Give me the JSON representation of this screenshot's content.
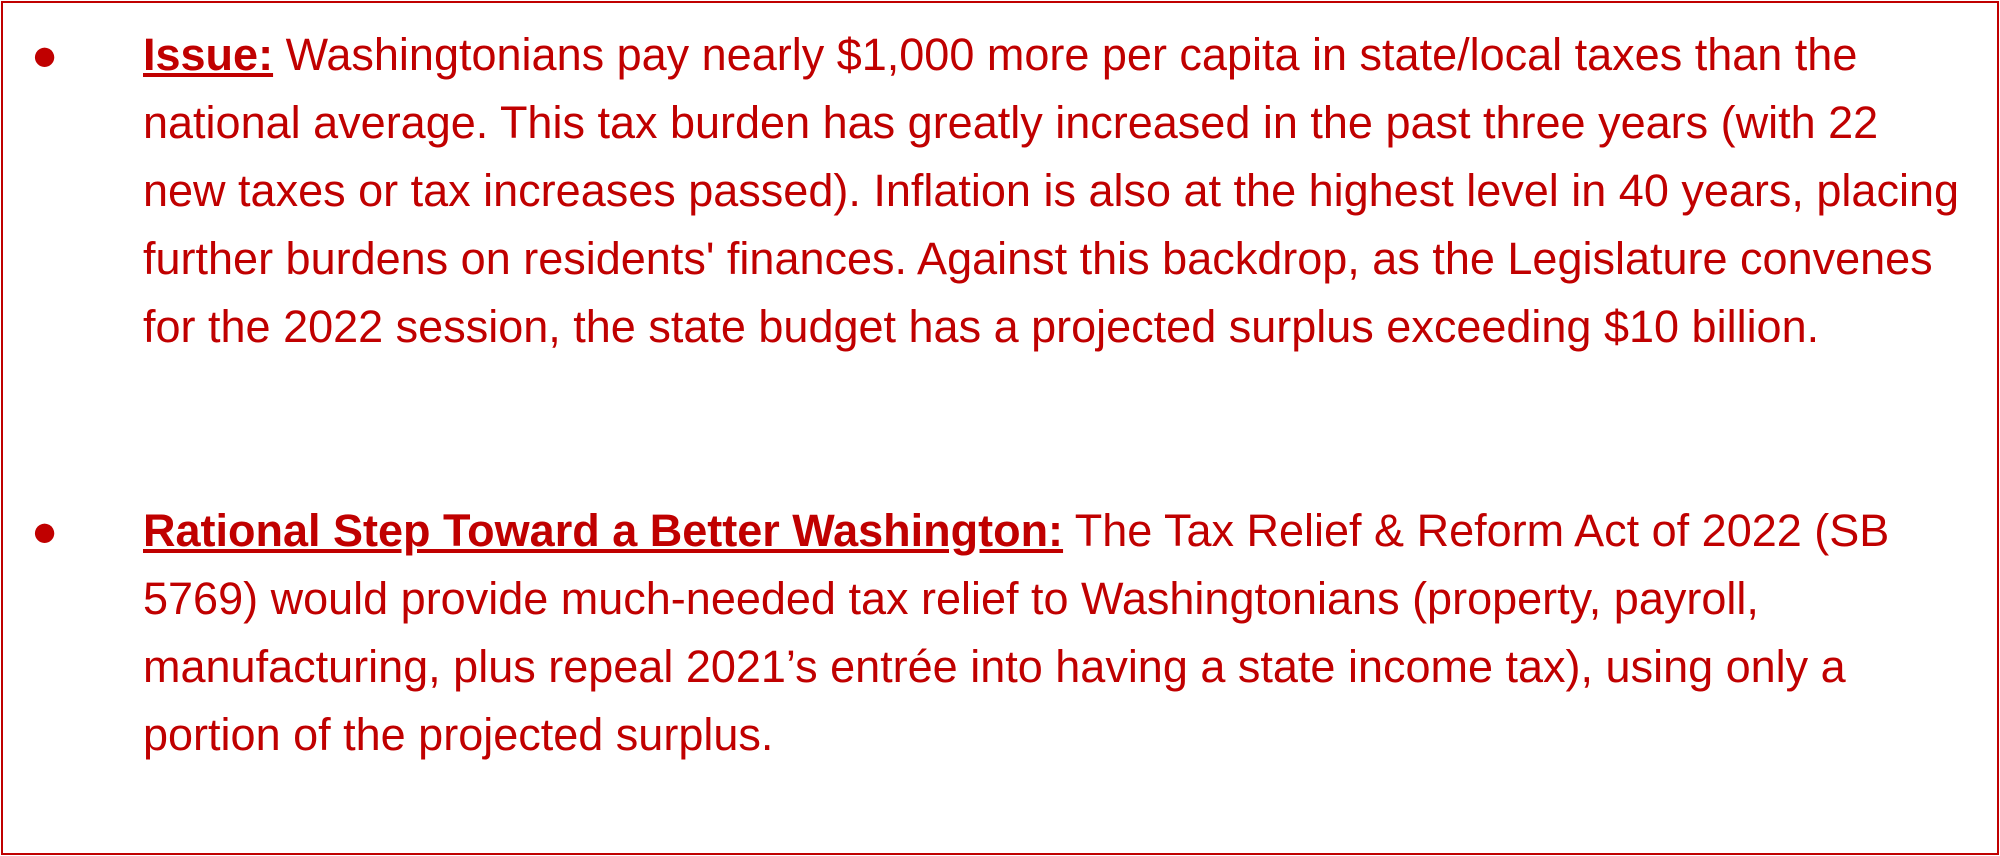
{
  "items": [
    {
      "label": "Issue:",
      "text": "Washingtonians pay nearly $1,000 more per capita in state/local taxes than the national average. This tax burden has greatly increased in the past three years (with 22 new taxes or tax increases passed). Inflation is also at the highest level in 40 years, placing further burdens on residents' finances. Against this backdrop, as the Legislature convenes for the 2022 session, the state budget has a projected surplus exceeding $10 billion."
    },
    {
      "label": "Rational Step Toward a Better Washington:",
      "text": "The Tax Relief & Reform Act of 2022 (SB 5769) would provide much-needed tax relief to Washingtonians (property, payroll, manufacturing, plus repeal 2021’s entrée into having a state income tax), using only a portion of the projected surplus."
    }
  ]
}
